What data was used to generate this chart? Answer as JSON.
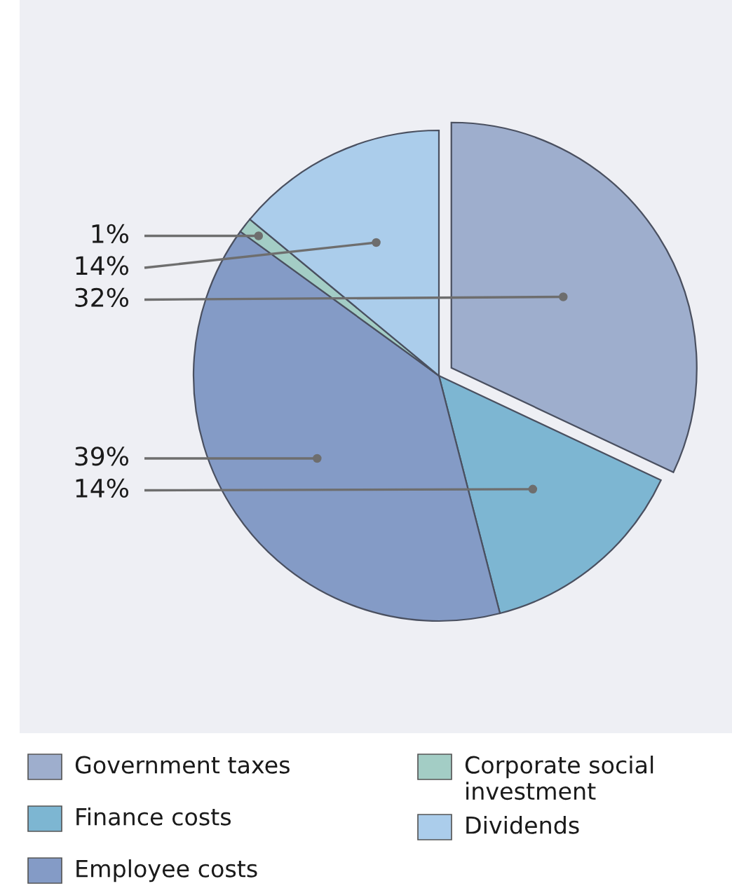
{
  "chart_data": {
    "type": "pie",
    "categories": [
      "Government taxes",
      "Finance costs",
      "Employee costs",
      "Corporate social investment",
      "Dividends"
    ],
    "values": [
      32,
      14,
      39,
      1,
      14
    ],
    "colors": [
      "#9eaecd",
      "#7db6d2",
      "#849bc6",
      "#a3cdc5",
      "#abcdeb"
    ],
    "value_labels": [
      "32%",
      "14%",
      "39%",
      "1%",
      "14%"
    ],
    "legend": "bottom"
  }
}
